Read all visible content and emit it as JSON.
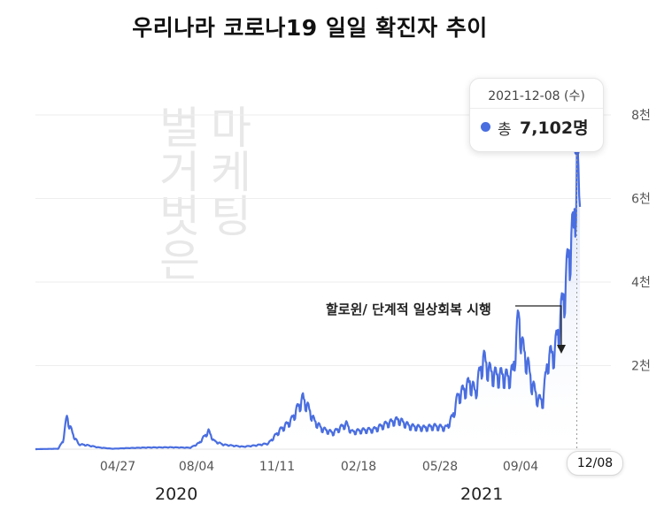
{
  "title": "우리나라 코로나19 일일 확진자 추이",
  "watermark": {
    "columns": [
      "벌거벗은",
      "마케팅"
    ]
  },
  "tooltip": {
    "date": "2021-12-08 (수)",
    "prefix": "총",
    "value": "7,102명"
  },
  "annotation": "할로윈/ 단계적 일상회복 시행",
  "selected_date": "12/08",
  "years": [
    "2020",
    "2021"
  ],
  "colors": {
    "line": "#4a6ee0",
    "fill_top": "#c9d4f5",
    "grid": "#eeeeee",
    "tick": "#555555",
    "cursor": "#999999"
  },
  "chart_data": {
    "type": "area",
    "title": "우리나라 코로나19 일일 확진자 추이",
    "x_tick_labels": [
      "04/27",
      "08/04",
      "11/11",
      "02/18",
      "05/28",
      "09/04",
      "12/08"
    ],
    "y_tick_labels": [
      "2천",
      "4천",
      "6천",
      "8천"
    ],
    "y_ticks": [
      2000,
      4000,
      6000,
      8000
    ],
    "ylim": [
      0,
      8000
    ],
    "xlim": [
      "2020-01-20",
      "2021-12-31"
    ],
    "grid": true,
    "series": [
      {
        "name": "총",
        "points": [
          [
            "2020-01-20",
            0
          ],
          [
            "2020-02-18",
            10
          ],
          [
            "2020-02-24",
            200
          ],
          [
            "2020-02-29",
            800
          ],
          [
            "2020-03-03",
            600
          ],
          [
            "2020-03-08",
            350
          ],
          [
            "2020-03-15",
            120
          ],
          [
            "2020-03-25",
            100
          ],
          [
            "2020-04-10",
            40
          ],
          [
            "2020-04-27",
            10
          ],
          [
            "2020-05-15",
            25
          ],
          [
            "2020-06-10",
            40
          ],
          [
            "2020-07-10",
            45
          ],
          [
            "2020-08-04",
            35
          ],
          [
            "2020-08-15",
            150
          ],
          [
            "2020-08-27",
            441
          ],
          [
            "2020-09-03",
            200
          ],
          [
            "2020-09-15",
            110
          ],
          [
            "2020-10-10",
            60
          ],
          [
            "2020-10-25",
            90
          ],
          [
            "2020-11-11",
            140
          ],
          [
            "2020-11-25",
            450
          ],
          [
            "2020-12-10",
            700
          ],
          [
            "2020-12-18",
            1000
          ],
          [
            "2020-12-25",
            1240
          ],
          [
            "2021-01-01",
            1000
          ],
          [
            "2021-01-08",
            700
          ],
          [
            "2021-01-18",
            500
          ],
          [
            "2021-02-01",
            400
          ],
          [
            "2021-02-18",
            620
          ],
          [
            "2021-02-25",
            420
          ],
          [
            "2021-03-10",
            460
          ],
          [
            "2021-03-25",
            480
          ],
          [
            "2021-04-10",
            620
          ],
          [
            "2021-04-25",
            720
          ],
          [
            "2021-05-10",
            560
          ],
          [
            "2021-05-28",
            520
          ],
          [
            "2021-06-10",
            560
          ],
          [
            "2021-06-25",
            520
          ],
          [
            "2021-07-03",
            790
          ],
          [
            "2021-07-10",
            1300
          ],
          [
            "2021-07-18",
            1450
          ],
          [
            "2021-07-25",
            1630
          ],
          [
            "2021-08-01",
            1400
          ],
          [
            "2021-08-11",
            2220
          ],
          [
            "2021-08-20",
            1880
          ],
          [
            "2021-08-28",
            1790
          ],
          [
            "2021-09-04",
            1800
          ],
          [
            "2021-09-12",
            1750
          ],
          [
            "2021-09-18",
            1900
          ],
          [
            "2021-09-25",
            3270
          ],
          [
            "2021-09-30",
            2480
          ],
          [
            "2021-10-05",
            2200
          ],
          [
            "2021-10-12",
            1600
          ],
          [
            "2021-10-20",
            1200
          ],
          [
            "2021-10-26",
            1200
          ],
          [
            "2021-11-01",
            2200
          ],
          [
            "2021-11-10",
            2400
          ],
          [
            "2021-11-17",
            3200
          ],
          [
            "2021-11-24",
            4100
          ],
          [
            "2021-11-30",
            5100
          ],
          [
            "2021-12-04",
            5300
          ],
          [
            "2021-12-08",
            7102
          ],
          [
            "2021-12-10",
            6300
          ],
          [
            "2021-12-12",
            5800
          ]
        ]
      }
    ]
  }
}
